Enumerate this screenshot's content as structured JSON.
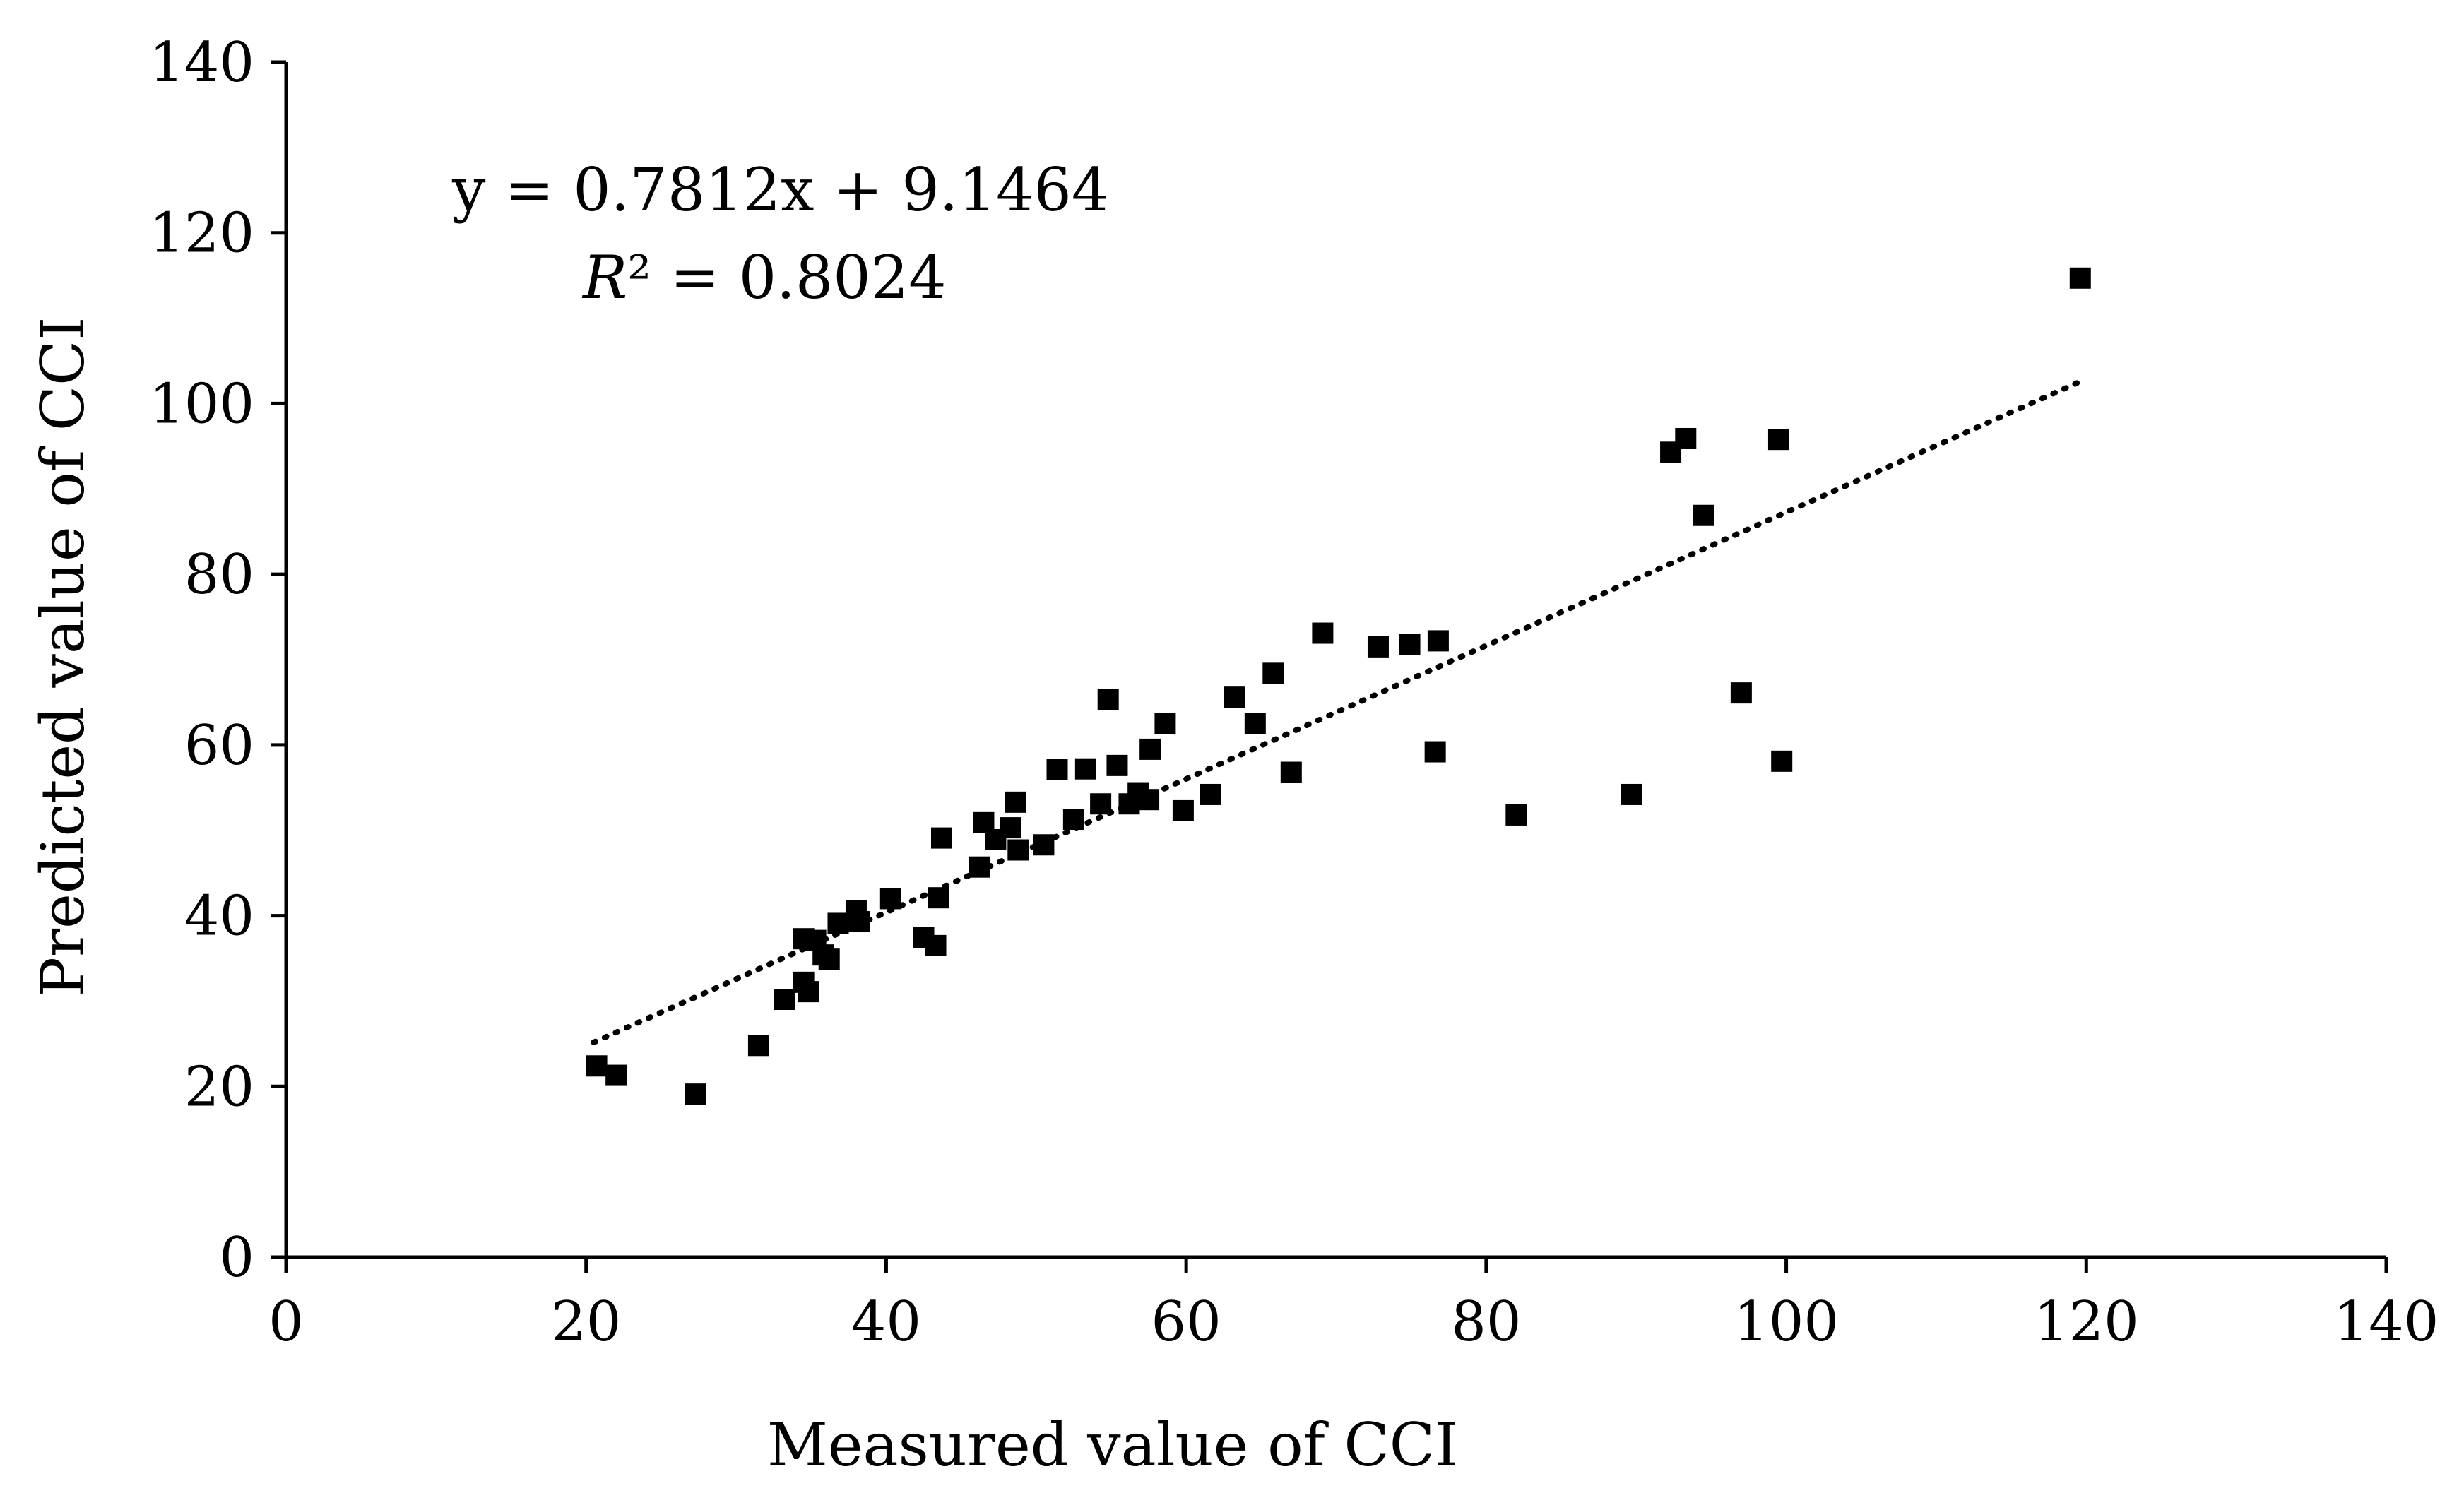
{
  "chart_data": {
    "type": "scatter",
    "title": "",
    "xlabel": "Measured value of CCI",
    "ylabel": "Predicted value of CCI",
    "xlim": [
      0,
      140
    ],
    "ylim": [
      0,
      140
    ],
    "xticks": [
      "0",
      "20",
      "40",
      "60",
      "80",
      "100",
      "120",
      "140"
    ],
    "yticks": [
      "0",
      "20",
      "40",
      "60",
      "80",
      "100",
      "120",
      "140"
    ],
    "equation": "y = 0.7812x + 9.1464",
    "r2_label": "R² = 0.8024",
    "trendline": {
      "slope": 0.7812,
      "intercept": 9.1464,
      "x_range": [
        20.5,
        119.5
      ]
    },
    "series": [
      {
        "name": "CCI",
        "points": [
          [
            20.7,
            22.4
          ],
          [
            22.0,
            21.3
          ],
          [
            27.3,
            19.1
          ],
          [
            31.5,
            24.8
          ],
          [
            33.2,
            30.2
          ],
          [
            34.5,
            32.2
          ],
          [
            34.8,
            31.1
          ],
          [
            34.5,
            37.3
          ],
          [
            35.3,
            37.1
          ],
          [
            35.8,
            35.4
          ],
          [
            36.2,
            34.9
          ],
          [
            36.8,
            39.1
          ],
          [
            38.0,
            40.6
          ],
          [
            38.2,
            39.3
          ],
          [
            40.3,
            42.0
          ],
          [
            42.5,
            37.4
          ],
          [
            43.3,
            36.5
          ],
          [
            43.5,
            42.1
          ],
          [
            43.7,
            49.1
          ],
          [
            46.2,
            45.7
          ],
          [
            46.5,
            50.9
          ],
          [
            47.3,
            48.9
          ],
          [
            48.3,
            50.3
          ],
          [
            48.6,
            53.3
          ],
          [
            48.8,
            47.7
          ],
          [
            50.5,
            48.3
          ],
          [
            51.4,
            57.1
          ],
          [
            52.5,
            51.3
          ],
          [
            53.3,
            57.2
          ],
          [
            54.3,
            53.1
          ],
          [
            54.8,
            65.3
          ],
          [
            55.4,
            57.6
          ],
          [
            56.2,
            53.1
          ],
          [
            56.8,
            54.4
          ],
          [
            57.5,
            53.6
          ],
          [
            57.6,
            59.5
          ],
          [
            58.6,
            62.5
          ],
          [
            59.8,
            52.3
          ],
          [
            61.6,
            54.2
          ],
          [
            63.2,
            65.6
          ],
          [
            64.6,
            62.5
          ],
          [
            65.8,
            68.4
          ],
          [
            67.0,
            56.8
          ],
          [
            69.1,
            73.1
          ],
          [
            72.8,
            71.5
          ],
          [
            74.9,
            71.8
          ],
          [
            76.8,
            72.2
          ],
          [
            76.6,
            59.2
          ],
          [
            82.0,
            51.8
          ],
          [
            89.7,
            54.2
          ],
          [
            92.3,
            94.3
          ],
          [
            93.3,
            95.9
          ],
          [
            94.5,
            86.9
          ],
          [
            97.0,
            66.1
          ],
          [
            99.5,
            95.8
          ],
          [
            99.7,
            58.1
          ],
          [
            119.6,
            114.7
          ]
        ]
      }
    ]
  }
}
